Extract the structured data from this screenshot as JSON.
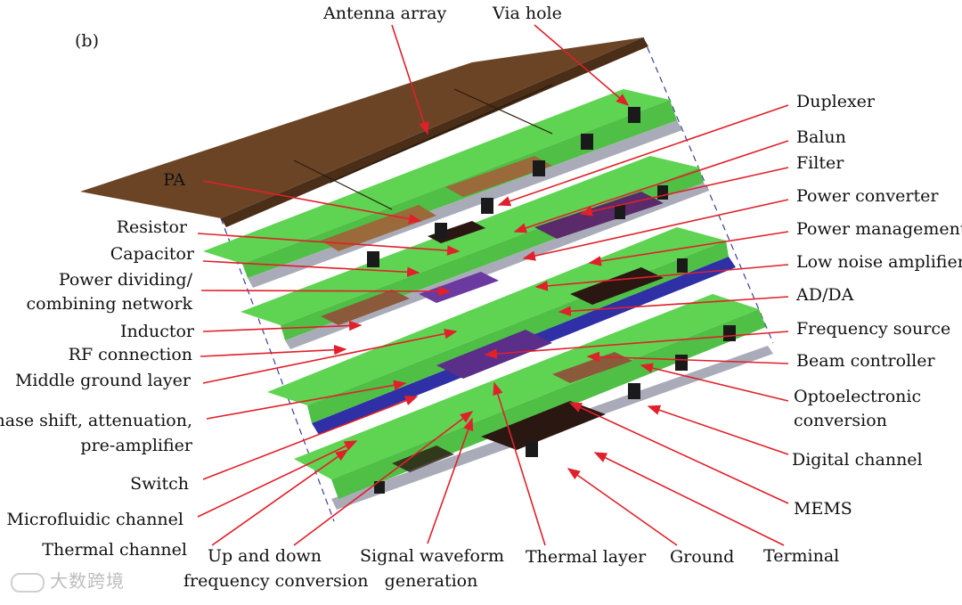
{
  "panel_label": "(b)",
  "colors": {
    "board": "#5fd352",
    "board_edge": "#3aa035",
    "ground": "#a9acb8",
    "antenna": "#6b4426",
    "blue_layer": "#2f2fa6",
    "arrow": "#e0202a",
    "dark_chip": "#2a1712"
  },
  "top_labels": {
    "antenna": "Antenna array",
    "via": "Via hole"
  },
  "left_labels": {
    "pa": "PA",
    "resistor": "Resistor",
    "capacitor": "Capacitor",
    "power_dividing_1": "Power dividing/",
    "power_dividing_2": "combining network",
    "inductor": "Inductor",
    "rf_connection": "RF connection",
    "middle_ground": "Middle ground layer",
    "phase_shift_1": "Phase shift, attenuation,",
    "phase_shift_2": "pre-amplifier",
    "switch": "Switch",
    "microfluidic": "Microfluidic channel",
    "thermal_channel": "Thermal channel"
  },
  "right_labels": {
    "duplexer": "Duplexer",
    "balun": "Balun",
    "filter": "Filter",
    "power_converter": "Power converter",
    "power_management": "Power management",
    "lna": "Low noise amplifier",
    "adda": "AD/DA",
    "frequency_source": "Frequency source",
    "beam_controller": "Beam controller",
    "optoelectronic_1": "Optoelectronic",
    "optoelectronic_2": "conversion",
    "digital_channel": "Digital channel",
    "mems": "MEMS"
  },
  "bottom_labels": {
    "updown_1": "Up and down",
    "updown_2": "frequency conversion",
    "signal_1": "Signal waveform",
    "signal_2": "generation",
    "thermal_layer": "Thermal layer",
    "ground": "Ground",
    "terminal": "Terminal"
  },
  "watermark": "大数跨境"
}
